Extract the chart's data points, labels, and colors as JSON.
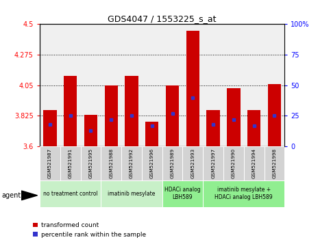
{
  "title": "GDS4047 / 1553225_s_at",
  "samples": [
    "GSM521987",
    "GSM521991",
    "GSM521995",
    "GSM521988",
    "GSM521992",
    "GSM521996",
    "GSM521989",
    "GSM521993",
    "GSM521997",
    "GSM521990",
    "GSM521994",
    "GSM521998"
  ],
  "transformed_counts": [
    3.87,
    4.12,
    3.83,
    4.05,
    4.12,
    3.78,
    4.05,
    4.45,
    3.87,
    4.03,
    3.87,
    4.06
  ],
  "percentile_ranks": [
    18,
    25,
    13,
    22,
    25,
    17,
    27,
    40,
    18,
    22,
    17,
    25
  ],
  "groups": [
    {
      "label": "no treatment control",
      "start": 0,
      "end": 3,
      "color": "#c8f0c8"
    },
    {
      "label": "imatinib mesylate",
      "start": 3,
      "end": 6,
      "color": "#c8f0c8"
    },
    {
      "label": "HDACi analog\nLBH589",
      "start": 6,
      "end": 8,
      "color": "#90ee90"
    },
    {
      "label": "imatinib mesylate +\nHDACi analog LBH589",
      "start": 8,
      "end": 12,
      "color": "#90ee90"
    }
  ],
  "ylim": [
    3.6,
    4.5
  ],
  "y2lim": [
    0,
    100
  ],
  "yticks": [
    3.6,
    3.825,
    4.05,
    4.275,
    4.5
  ],
  "ytick_labels": [
    "3.6",
    "3.825",
    "4.05",
    "4.275",
    "4.5"
  ],
  "y2ticks": [
    0,
    25,
    50,
    75,
    100
  ],
  "y2tick_labels": [
    "0",
    "25",
    "50",
    "75",
    "100%"
  ],
  "bar_color": "#cc0000",
  "blue_color": "#3333cc",
  "bar_width": 0.65,
  "legend_items": [
    "transformed count",
    "percentile rank within the sample"
  ],
  "background_color": "#ffffff",
  "agent_label": "agent",
  "plot_bg": "#f0f0f0"
}
